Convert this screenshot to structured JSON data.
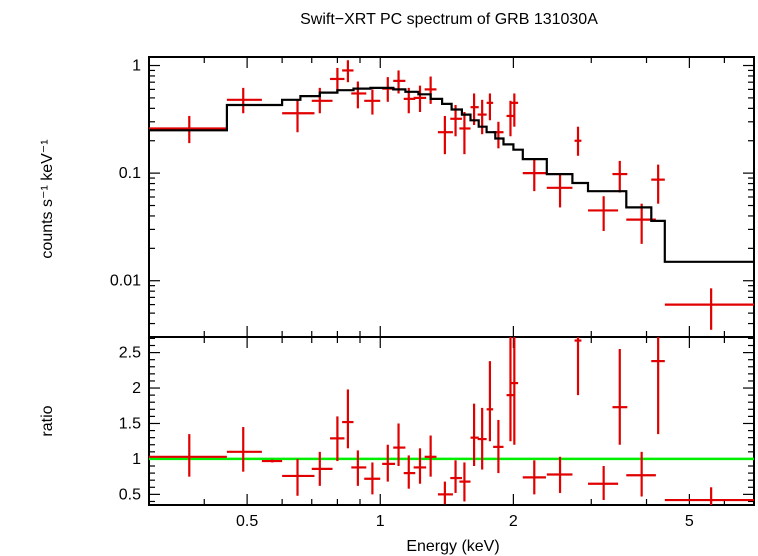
{
  "chart_data": [
    {
      "type": "scatter",
      "panel": "spectrum",
      "title": "Swift−XRT PC spectrum of GRB 131030A",
      "xlabel": "",
      "ylabel": "counts s⁻¹ keV⁻¹",
      "xscale": "log",
      "yscale": "log",
      "xlim": [
        0.3,
        7.0
      ],
      "ylim": [
        0.003,
        1.2
      ],
      "xticks": [
        {
          "value": 0.5,
          "label": ""
        },
        {
          "value": 1,
          "label": ""
        },
        {
          "value": 2,
          "label": ""
        },
        {
          "value": 5,
          "label": ""
        }
      ],
      "yticks": [
        {
          "value": 1,
          "label": "1"
        },
        {
          "value": 0.1,
          "label": "0.1"
        },
        {
          "value": 0.01,
          "label": "0.01"
        }
      ],
      "colors": {
        "data": "#e00000",
        "model": "#000000"
      },
      "series": [
        {
          "kind": "data",
          "points": [
            {
              "x": 0.37,
              "xlo": 0.3,
              "xhi": 0.45,
              "y": 0.26,
              "ylo": 0.19,
              "yhi": 0.34
            },
            {
              "x": 0.49,
              "xlo": 0.45,
              "xhi": 0.54,
              "y": 0.48,
              "ylo": 0.36,
              "yhi": 0.62
            },
            {
              "x": 0.65,
              "xlo": 0.6,
              "xhi": 0.71,
              "y": 0.36,
              "ylo": 0.24,
              "yhi": 0.48
            },
            {
              "x": 0.73,
              "xlo": 0.7,
              "xhi": 0.78,
              "y": 0.47,
              "ylo": 0.36,
              "yhi": 0.62
            },
            {
              "x": 0.8,
              "xlo": 0.77,
              "xhi": 0.83,
              "y": 0.75,
              "ylo": 0.57,
              "yhi": 0.95
            },
            {
              "x": 0.845,
              "xlo": 0.82,
              "xhi": 0.87,
              "y": 0.9,
              "ylo": 0.7,
              "yhi": 1.12
            },
            {
              "x": 0.89,
              "xlo": 0.86,
              "xhi": 0.93,
              "y": 0.55,
              "ylo": 0.4,
              "yhi": 0.71
            },
            {
              "x": 0.96,
              "xlo": 0.92,
              "xhi": 1.0,
              "y": 0.47,
              "ylo": 0.35,
              "yhi": 0.6
            },
            {
              "x": 1.04,
              "xlo": 1.01,
              "xhi": 1.08,
              "y": 0.61,
              "ylo": 0.46,
              "yhi": 0.78
            },
            {
              "x": 1.1,
              "xlo": 1.07,
              "xhi": 1.14,
              "y": 0.72,
              "ylo": 0.55,
              "yhi": 0.9
            },
            {
              "x": 1.16,
              "xlo": 1.13,
              "xhi": 1.2,
              "y": 0.49,
              "ylo": 0.36,
              "yhi": 0.62
            },
            {
              "x": 1.23,
              "xlo": 1.19,
              "xhi": 1.27,
              "y": 0.5,
              "ylo": 0.37,
              "yhi": 0.65
            },
            {
              "x": 1.3,
              "xlo": 1.26,
              "xhi": 1.34,
              "y": 0.6,
              "ylo": 0.44,
              "yhi": 0.79
            },
            {
              "x": 1.4,
              "xlo": 1.35,
              "xhi": 1.46,
              "y": 0.24,
              "ylo": 0.15,
              "yhi": 0.34
            },
            {
              "x": 1.48,
              "xlo": 1.44,
              "xhi": 1.53,
              "y": 0.32,
              "ylo": 0.22,
              "yhi": 0.43
            },
            {
              "x": 1.55,
              "xlo": 1.51,
              "xhi": 1.6,
              "y": 0.26,
              "ylo": 0.15,
              "yhi": 0.37
            },
            {
              "x": 1.63,
              "xlo": 1.6,
              "xhi": 1.67,
              "y": 0.41,
              "ylo": 0.28,
              "yhi": 0.55
            },
            {
              "x": 1.7,
              "xlo": 1.66,
              "xhi": 1.74,
              "y": 0.35,
              "ylo": 0.23,
              "yhi": 0.48
            },
            {
              "x": 1.77,
              "xlo": 1.74,
              "xhi": 1.8,
              "y": 0.45,
              "ylo": 0.31,
              "yhi": 0.55
            },
            {
              "x": 1.85,
              "xlo": 1.8,
              "xhi": 1.9,
              "y": 0.24,
              "ylo": 0.17,
              "yhi": 0.3
            },
            {
              "x": 1.97,
              "xlo": 1.93,
              "xhi": 2.01,
              "y": 0.34,
              "ylo": 0.22,
              "yhi": 0.47
            },
            {
              "x": 2.01,
              "xlo": 1.98,
              "xhi": 2.05,
              "y": 0.45,
              "ylo": 0.27,
              "yhi": 0.55
            },
            {
              "x": 2.23,
              "xlo": 2.1,
              "xhi": 2.37,
              "y": 0.1,
              "ylo": 0.068,
              "yhi": 0.133
            },
            {
              "x": 2.55,
              "xlo": 2.38,
              "xhi": 2.72,
              "y": 0.073,
              "ylo": 0.048,
              "yhi": 0.098
            },
            {
              "x": 2.8,
              "xlo": 2.75,
              "xhi": 2.85,
              "y": 0.2,
              "ylo": 0.145,
              "yhi": 0.27
            },
            {
              "x": 3.2,
              "xlo": 2.95,
              "xhi": 3.45,
              "y": 0.045,
              "ylo": 0.029,
              "yhi": 0.061
            },
            {
              "x": 3.48,
              "xlo": 3.35,
              "xhi": 3.62,
              "y": 0.098,
              "ylo": 0.066,
              "yhi": 0.13
            },
            {
              "x": 3.9,
              "xlo": 3.6,
              "xhi": 4.2,
              "y": 0.037,
              "ylo": 0.022,
              "yhi": 0.052
            },
            {
              "x": 4.25,
              "xlo": 4.1,
              "xhi": 4.4,
              "y": 0.087,
              "ylo": 0.052,
              "yhi": 0.12
            },
            {
              "x": 5.6,
              "xlo": 4.4,
              "xhi": 7.0,
              "y": 0.006,
              "ylo": 0.0035,
              "yhi": 0.0085
            }
          ]
        },
        {
          "kind": "model",
          "steps": [
            {
              "x0": 0.3,
              "x1": 0.45,
              "y": 0.25
            },
            {
              "x0": 0.45,
              "x1": 0.6,
              "y": 0.43
            },
            {
              "x0": 0.6,
              "x1": 0.66,
              "y": 0.48
            },
            {
              "x0": 0.66,
              "x1": 0.73,
              "y": 0.52
            },
            {
              "x0": 0.73,
              "x1": 0.8,
              "y": 0.56
            },
            {
              "x0": 0.8,
              "x1": 0.87,
              "y": 0.59
            },
            {
              "x0": 0.87,
              "x1": 0.95,
              "y": 0.61
            },
            {
              "x0": 0.95,
              "x1": 1.07,
              "y": 0.62
            },
            {
              "x0": 1.07,
              "x1": 1.14,
              "y": 0.6
            },
            {
              "x0": 1.14,
              "x1": 1.22,
              "y": 0.57
            },
            {
              "x0": 1.22,
              "x1": 1.3,
              "y": 0.54
            },
            {
              "x0": 1.3,
              "x1": 1.38,
              "y": 0.49
            },
            {
              "x0": 1.38,
              "x1": 1.45,
              "y": 0.44
            },
            {
              "x0": 1.45,
              "x1": 1.53,
              "y": 0.39
            },
            {
              "x0": 1.53,
              "x1": 1.6,
              "y": 0.35
            },
            {
              "x0": 1.6,
              "x1": 1.67,
              "y": 0.31
            },
            {
              "x0": 1.67,
              "x1": 1.74,
              "y": 0.27
            },
            {
              "x0": 1.74,
              "x1": 1.82,
              "y": 0.24
            },
            {
              "x0": 1.82,
              "x1": 1.9,
              "y": 0.21
            },
            {
              "x0": 1.9,
              "x1": 2.0,
              "y": 0.185
            },
            {
              "x0": 2.0,
              "x1": 2.1,
              "y": 0.165
            },
            {
              "x0": 2.1,
              "x1": 2.38,
              "y": 0.135
            },
            {
              "x0": 2.38,
              "x1": 2.72,
              "y": 0.098
            },
            {
              "x0": 2.72,
              "x1": 2.95,
              "y": 0.081
            },
            {
              "x0": 2.95,
              "x1": 3.6,
              "y": 0.068
            },
            {
              "x0": 3.6,
              "x1": 4.1,
              "y": 0.048
            },
            {
              "x0": 4.1,
              "x1": 4.4,
              "y": 0.036
            },
            {
              "x0": 4.4,
              "x1": 7.0,
              "y": 0.015
            }
          ]
        }
      ]
    },
    {
      "type": "scatter",
      "panel": "ratio",
      "title": "",
      "xlabel": "Energy (keV)",
      "ylabel": "ratio",
      "xscale": "log",
      "yscale": "linear",
      "xlim": [
        0.3,
        7.0
      ],
      "ylim": [
        0.35,
        2.72
      ],
      "xticks": [
        {
          "value": 0.5,
          "label": "0.5"
        },
        {
          "value": 1,
          "label": "1"
        },
        {
          "value": 2,
          "label": "2"
        },
        {
          "value": 5,
          "label": "5"
        }
      ],
      "yticks": [
        {
          "value": 0.5,
          "label": "0.5"
        },
        {
          "value": 1,
          "label": "1"
        },
        {
          "value": 1.5,
          "label": "1.5"
        },
        {
          "value": 2,
          "label": "2"
        },
        {
          "value": 2.5,
          "label": "2.5"
        }
      ],
      "reference_line": {
        "y": 1,
        "color": "#00ee00"
      },
      "colors": {
        "data": "#e00000"
      },
      "series": [
        {
          "kind": "data",
          "points": [
            {
              "x": 0.37,
              "xlo": 0.3,
              "xhi": 0.45,
              "y": 1.03,
              "ylo": 0.75,
              "yhi": 1.35
            },
            {
              "x": 0.49,
              "xlo": 0.45,
              "xhi": 0.54,
              "y": 1.1,
              "ylo": 0.82,
              "yhi": 1.45
            },
            {
              "x": 0.57,
              "xlo": 0.54,
              "xhi": 0.6,
              "y": 0.97,
              "ylo": 0.95,
              "yhi": 0.99
            },
            {
              "x": 0.65,
              "xlo": 0.6,
              "xhi": 0.71,
              "y": 0.76,
              "ylo": 0.48,
              "yhi": 1.0
            },
            {
              "x": 0.73,
              "xlo": 0.7,
              "xhi": 0.78,
              "y": 0.86,
              "ylo": 0.62,
              "yhi": 1.1
            },
            {
              "x": 0.8,
              "xlo": 0.77,
              "xhi": 0.83,
              "y": 1.29,
              "ylo": 0.97,
              "yhi": 1.6
            },
            {
              "x": 0.845,
              "xlo": 0.82,
              "xhi": 0.87,
              "y": 1.52,
              "ylo": 1.15,
              "yhi": 1.98
            },
            {
              "x": 0.89,
              "xlo": 0.86,
              "xhi": 0.93,
              "y": 0.88,
              "ylo": 0.62,
              "yhi": 1.12
            },
            {
              "x": 0.96,
              "xlo": 0.92,
              "xhi": 1.0,
              "y": 0.72,
              "ylo": 0.5,
              "yhi": 0.95
            },
            {
              "x": 1.04,
              "xlo": 1.01,
              "xhi": 1.08,
              "y": 0.93,
              "ylo": 0.68,
              "yhi": 1.2
            },
            {
              "x": 1.1,
              "xlo": 1.07,
              "xhi": 1.14,
              "y": 1.16,
              "ylo": 0.9,
              "yhi": 1.5
            },
            {
              "x": 1.16,
              "xlo": 1.13,
              "xhi": 1.2,
              "y": 0.8,
              "ylo": 0.58,
              "yhi": 1.05
            },
            {
              "x": 1.23,
              "xlo": 1.19,
              "xhi": 1.27,
              "y": 0.88,
              "ylo": 0.65,
              "yhi": 1.15
            },
            {
              "x": 1.3,
              "xlo": 1.26,
              "xhi": 1.34,
              "y": 1.03,
              "ylo": 0.75,
              "yhi": 1.33
            },
            {
              "x": 1.4,
              "xlo": 1.35,
              "xhi": 1.46,
              "y": 0.5,
              "ylo": 0.36,
              "yhi": 0.68
            },
            {
              "x": 1.48,
              "xlo": 1.44,
              "xhi": 1.53,
              "y": 0.73,
              "ylo": 0.52,
              "yhi": 0.98
            },
            {
              "x": 1.55,
              "xlo": 1.51,
              "xhi": 1.6,
              "y": 0.68,
              "ylo": 0.4,
              "yhi": 0.95
            },
            {
              "x": 1.63,
              "xlo": 1.6,
              "xhi": 1.67,
              "y": 1.3,
              "ylo": 0.9,
              "yhi": 1.78
            },
            {
              "x": 1.7,
              "xlo": 1.66,
              "xhi": 1.74,
              "y": 1.28,
              "ylo": 0.85,
              "yhi": 1.72
            },
            {
              "x": 1.77,
              "xlo": 1.74,
              "xhi": 1.8,
              "y": 1.7,
              "ylo": 1.25,
              "yhi": 2.38
            },
            {
              "x": 1.85,
              "xlo": 1.8,
              "xhi": 1.9,
              "y": 1.17,
              "ylo": 0.8,
              "yhi": 1.55
            },
            {
              "x": 1.97,
              "xlo": 1.93,
              "xhi": 2.01,
              "y": 1.9,
              "ylo": 1.25,
              "yhi": 2.72
            },
            {
              "x": 2.01,
              "xlo": 1.98,
              "xhi": 2.05,
              "y": 2.07,
              "ylo": 1.2,
              "yhi": 2.72
            },
            {
              "x": 2.23,
              "xlo": 2.1,
              "xhi": 2.37,
              "y": 0.74,
              "ylo": 0.5,
              "yhi": 0.98
            },
            {
              "x": 2.55,
              "xlo": 2.38,
              "xhi": 2.72,
              "y": 0.78,
              "ylo": 0.52,
              "yhi": 1.03
            },
            {
              "x": 2.8,
              "xlo": 2.75,
              "xhi": 2.85,
              "y": 2.67,
              "ylo": 1.9,
              "yhi": 2.72
            },
            {
              "x": 3.2,
              "xlo": 2.95,
              "xhi": 3.45,
              "y": 0.65,
              "ylo": 0.42,
              "yhi": 0.9
            },
            {
              "x": 3.48,
              "xlo": 3.35,
              "xhi": 3.62,
              "y": 1.73,
              "ylo": 1.2,
              "yhi": 2.55
            },
            {
              "x": 3.9,
              "xlo": 3.6,
              "xhi": 4.2,
              "y": 0.77,
              "ylo": 0.47,
              "yhi": 1.1
            },
            {
              "x": 4.25,
              "xlo": 4.1,
              "xhi": 4.4,
              "y": 2.38,
              "ylo": 1.35,
              "yhi": 2.72
            },
            {
              "x": 5.6,
              "xlo": 4.4,
              "xhi": 7.0,
              "y": 0.42,
              "ylo": 0.35,
              "yhi": 0.6
            }
          ]
        }
      ]
    }
  ]
}
